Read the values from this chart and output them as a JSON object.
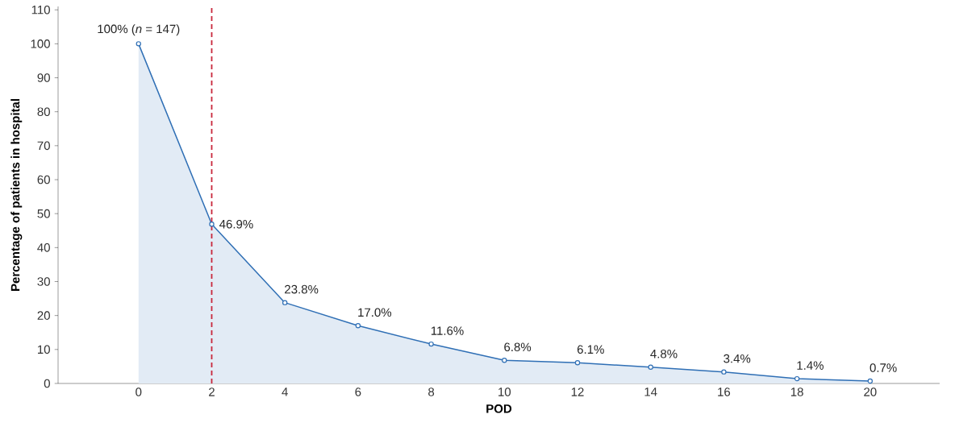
{
  "chart_data": {
    "type": "area",
    "xlabel": "POD",
    "ylabel": "Percentage of patients in hospital",
    "x": [
      0,
      2,
      4,
      6,
      8,
      10,
      12,
      14,
      16,
      18,
      20
    ],
    "series": [
      {
        "color": "#2f6fb5",
        "values": [
          100,
          46.9,
          23.8,
          17.0,
          11.6,
          6.8,
          6.1,
          4.8,
          3.4,
          1.4,
          0.7
        ],
        "value_labels": [
          "100% (*n* = 147)",
          "46.9%",
          "23.8%",
          "17.0%",
          "11.6%",
          "6.8%",
          "6.1%",
          "4.8%",
          "3.4%",
          "1.4%",
          "0.7%"
        ]
      }
    ],
    "xlim": [
      -2.2,
      21.9
    ],
    "ylim": [
      0,
      111
    ],
    "xticks": [
      0,
      2,
      4,
      6,
      8,
      10,
      12,
      14,
      16,
      18,
      20
    ],
    "yticks": [
      0,
      10,
      20,
      30,
      40,
      50,
      60,
      70,
      80,
      90,
      100,
      110
    ],
    "ref_lines": [
      {
        "axis": "x",
        "value": 2,
        "color": "#c8283c",
        "line_style": "dashed"
      }
    ],
    "marker": "circle"
  }
}
